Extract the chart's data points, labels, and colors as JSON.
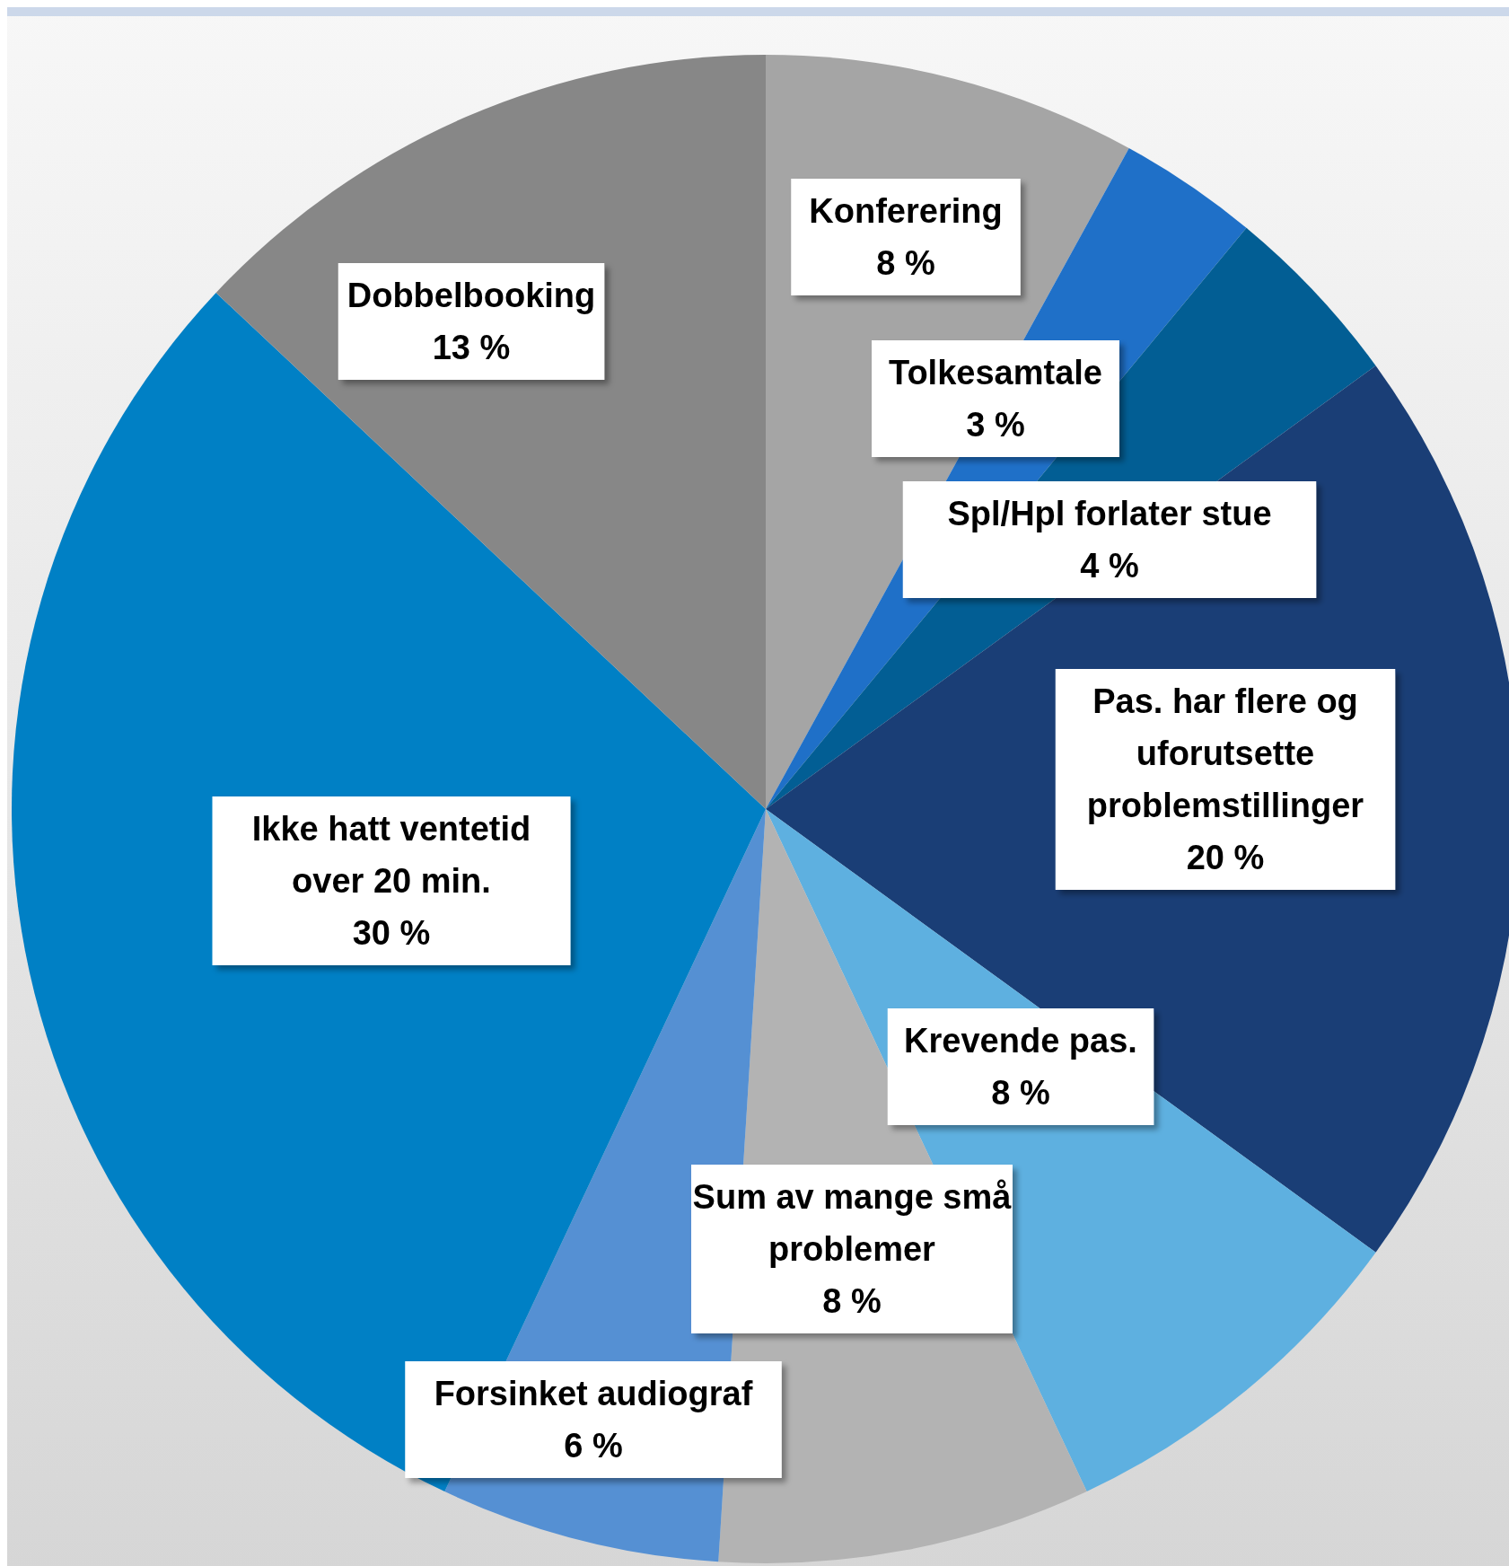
{
  "chart_data": {
    "type": "pie",
    "categories": [
      "Konferering",
      "Tolkesamtale",
      "Spl/Hpl forlater stue",
      "Pas. har flere og uforutsette problemstillinger",
      "Krevende pas.",
      "Sum av mange små problemer",
      "Forsinket audiograf",
      "Ikke hatt ventetid over 20 min.",
      "Dobbelbooking"
    ],
    "values": [
      8,
      3,
      4,
      20,
      8,
      8,
      6,
      30,
      13
    ],
    "value_labels": [
      "8 %",
      "3 %",
      "4 %",
      "20 %",
      "8 %",
      "8 %",
      "6 %",
      "30 %",
      "13 %"
    ],
    "colors": [
      "#a5a5a5",
      "#1f70c8",
      "#025e94",
      "#1a3e76",
      "#5eb0e0",
      "#b3b3b3",
      "#5590d3",
      "#0080c5",
      "#878787"
    ]
  }
}
